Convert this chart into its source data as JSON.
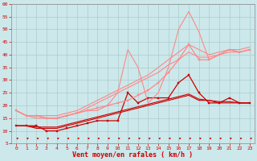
{
  "title": "",
  "xlabel": "Vent moyen/en rafales ( km/h )",
  "bg_color": "#cce8eb",
  "grid_color": "#aacccc",
  "x_values": [
    0,
    1,
    2,
    3,
    4,
    5,
    6,
    7,
    8,
    9,
    10,
    11,
    12,
    13,
    14,
    15,
    16,
    17,
    18,
    19,
    20,
    21,
    22,
    23
  ],
  "xlim": [
    -0.5,
    23.5
  ],
  "ylim": [
    5,
    60
  ],
  "yticks": [
    5,
    10,
    15,
    20,
    25,
    30,
    35,
    40,
    45,
    50,
    55,
    60
  ],
  "lines": [
    {
      "label": "dark_straight1",
      "y": [
        12,
        12,
        11,
        11,
        11,
        12,
        13,
        14,
        15,
        16,
        17,
        18,
        19,
        20,
        21,
        22,
        23,
        24,
        22,
        22,
        21,
        21,
        21,
        21
      ],
      "color": "#cc0000",
      "lw": 0.8,
      "marker": null
    },
    {
      "label": "dark_straight2",
      "y": [
        12,
        12,
        11.5,
        11.5,
        11.5,
        12.5,
        13.5,
        14.5,
        15.5,
        16.5,
        17.5,
        18.5,
        19.5,
        20.5,
        21.5,
        22.5,
        23.5,
        24.5,
        22.5,
        22,
        21.5,
        21.5,
        21,
        21
      ],
      "color": "#cc0000",
      "lw": 0.8,
      "marker": null
    },
    {
      "label": "dark_jagged",
      "y": [
        12,
        12,
        12,
        10,
        10,
        11,
        12,
        13,
        14,
        14,
        14,
        25,
        21,
        23,
        23,
        23,
        29,
        32,
        25,
        21,
        21,
        23,
        21,
        21
      ],
      "color": "#cc0000",
      "lw": 0.9,
      "marker": "s",
      "ms": 1.8
    },
    {
      "label": "light_straight1",
      "y": [
        18,
        16,
        15,
        15,
        15,
        16,
        17,
        19,
        21,
        23,
        25,
        27,
        29,
        31,
        33,
        36,
        38,
        41,
        39,
        39,
        40,
        41,
        41,
        42
      ],
      "color": "#ff8888",
      "lw": 0.8,
      "marker": null
    },
    {
      "label": "light_straight2",
      "y": [
        18,
        16,
        16,
        16,
        16,
        17,
        18,
        20,
        22,
        24,
        26,
        28,
        30,
        32,
        35,
        38,
        41,
        44,
        42,
        40,
        41,
        42,
        42,
        43
      ],
      "color": "#ff8888",
      "lw": 0.8,
      "marker": null
    },
    {
      "label": "light_jagged_smooth",
      "y": [
        18,
        16,
        16,
        15,
        15,
        16,
        17,
        18,
        19,
        20,
        21,
        22,
        24,
        26,
        29,
        33,
        38,
        44,
        38,
        38,
        40,
        42,
        41,
        42
      ],
      "color": "#ff8888",
      "lw": 0.9,
      "marker": "s",
      "ms": 1.8
    },
    {
      "label": "light_jagged_spike",
      "y": [
        18,
        16,
        16,
        15,
        15,
        16,
        17,
        18,
        18,
        20,
        25,
        42,
        35,
        21,
        25,
        35,
        50,
        57,
        49,
        38,
        40,
        42,
        41,
        42
      ],
      "color": "#ff8888",
      "lw": 0.8,
      "marker": null
    }
  ],
  "tick_label_color": "#cc0000",
  "label_color": "#cc0000",
  "xlabel_fontsize": 6.0,
  "tick_fontsize": 4.5
}
